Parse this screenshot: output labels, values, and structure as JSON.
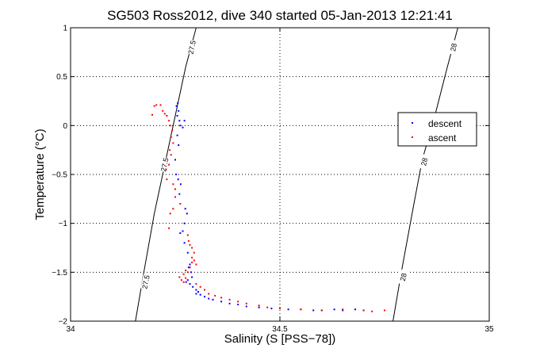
{
  "chart_data": {
    "type": "scatter",
    "title": "SG503 Ross2012, dive 340 started 05-Jan-2013 12:21:41",
    "xlabel": "Salinity (S [PSS−78])",
    "ylabel": "Temperature (°C)",
    "xlim": [
      34,
      35
    ],
    "ylim": [
      -2,
      1
    ],
    "xticks": [
      34,
      34.5,
      35
    ],
    "xtick_labels": [
      "34",
      "34.5",
      "35"
    ],
    "yticks": [
      -2,
      -1.5,
      -1,
      -0.5,
      0,
      0.5,
      1
    ],
    "ytick_labels": [
      "−2",
      "−1.5",
      "−1",
      "−0.5",
      "0",
      "0.5",
      "1"
    ],
    "grid": true,
    "legend_position": "upper-right",
    "colors": {
      "descent": "#0000ff",
      "ascent": "#ff0000",
      "contour": "#000000",
      "grid": "#000000"
    },
    "density_contours": [
      {
        "label": "27.5",
        "points": [
          [
            34.155,
            -2.0
          ],
          [
            34.175,
            -1.5
          ],
          [
            34.2,
            -0.9
          ],
          [
            34.225,
            -0.4
          ],
          [
            34.25,
            0.1
          ],
          [
            34.275,
            0.6
          ],
          [
            34.3,
            1.0
          ]
        ],
        "label_at": [
          [
            34.18,
            -1.6
          ],
          [
            34.225,
            -0.4
          ],
          [
            34.29,
            0.8
          ]
        ]
      },
      {
        "label": "28",
        "points": [
          [
            34.77,
            -2.0
          ],
          [
            34.79,
            -1.5
          ],
          [
            34.82,
            -0.8
          ],
          [
            34.84,
            -0.35
          ],
          [
            34.87,
            0.1
          ],
          [
            34.9,
            0.6
          ],
          [
            34.925,
            1.0
          ]
        ],
        "label_at": [
          [
            34.795,
            -1.55
          ],
          [
            34.845,
            -0.37
          ],
          [
            34.915,
            0.8
          ]
        ]
      }
    ],
    "series": [
      {
        "name": "descent",
        "x": [
          34.256,
          34.253,
          34.258,
          34.255,
          34.26,
          34.262,
          34.268,
          34.272,
          34.255,
          34.258,
          34.25,
          34.252,
          34.263,
          34.257,
          34.26,
          34.274,
          34.278,
          34.272,
          34.268,
          34.262,
          34.272,
          34.28,
          34.285,
          34.282,
          34.288,
          34.29,
          34.28,
          34.276,
          34.285,
          34.292,
          34.3,
          34.305,
          34.3,
          34.31,
          34.32,
          34.33,
          34.34,
          34.36,
          34.38,
          34.4,
          34.42,
          34.45,
          34.48,
          34.5,
          34.52,
          34.55,
          34.58,
          34.6,
          34.63,
          34.65,
          34.68,
          34.7
        ],
        "y": [
          0.23,
          0.2,
          0.15,
          0.1,
          0.05,
          0.0,
          -0.02,
          0.05,
          -0.1,
          -0.2,
          -0.35,
          -0.5,
          -0.6,
          -0.55,
          -0.7,
          -0.85,
          -0.9,
          -1.0,
          -1.08,
          -1.1,
          -1.2,
          -1.3,
          -1.42,
          -1.45,
          -1.5,
          -1.55,
          -1.58,
          -1.6,
          -1.62,
          -1.65,
          -1.68,
          -1.7,
          -1.72,
          -1.73,
          -1.75,
          -1.77,
          -1.78,
          -1.8,
          -1.82,
          -1.83,
          -1.85,
          -1.86,
          -1.87,
          -1.87,
          -1.88,
          -1.88,
          -1.89,
          -1.89,
          -1.88,
          -1.89,
          -1.88,
          -1.89
        ]
      },
      {
        "name": "ascent",
        "x": [
          34.195,
          34.2,
          34.205,
          34.215,
          34.22,
          34.225,
          34.23,
          34.235,
          34.238,
          34.243,
          34.24,
          34.245,
          34.237,
          34.24,
          34.235,
          34.228,
          34.23,
          34.245,
          34.25,
          34.25,
          34.262,
          34.245,
          34.238,
          34.235,
          34.28,
          34.282,
          34.285,
          34.29,
          34.295,
          34.29,
          34.295,
          34.3,
          34.29,
          34.285,
          34.275,
          34.27,
          34.26,
          34.265,
          34.27,
          34.275,
          34.28,
          34.285,
          34.3,
          34.31,
          34.32,
          34.33,
          34.345,
          34.36,
          34.38,
          34.4,
          34.42,
          34.45,
          34.47,
          34.5,
          34.55,
          34.6,
          34.65,
          34.7,
          34.72,
          34.75
        ],
        "y": [
          0.11,
          0.2,
          0.21,
          0.21,
          0.15,
          0.12,
          0.1,
          0.05,
          0.0,
          -0.05,
          -0.12,
          -0.18,
          -0.25,
          -0.3,
          -0.4,
          -0.45,
          -0.55,
          -0.6,
          -0.65,
          -0.73,
          -0.8,
          -0.85,
          -0.9,
          -1.05,
          -1.12,
          -1.18,
          -1.22,
          -1.25,
          -1.3,
          -1.35,
          -1.38,
          -1.42,
          -1.4,
          -1.45,
          -1.48,
          -1.52,
          -1.55,
          -1.58,
          -1.6,
          -1.56,
          -1.5,
          -1.45,
          -1.62,
          -1.65,
          -1.68,
          -1.72,
          -1.74,
          -1.76,
          -1.78,
          -1.8,
          -1.82,
          -1.84,
          -1.86,
          -1.87,
          -1.88,
          -1.89,
          -1.88,
          -1.89,
          -1.9,
          -1.89
        ]
      }
    ]
  }
}
